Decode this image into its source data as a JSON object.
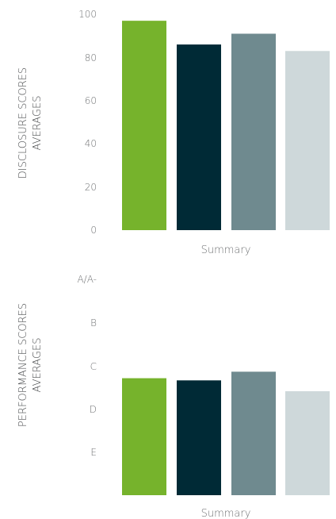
{
  "colors": [
    "#76b32c",
    "#002a36",
    "#6f8a8f",
    "#ced8da"
  ],
  "chart_data": [
    {
      "type": "bar",
      "categories": [
        "Summary"
      ],
      "series": [
        {
          "values": [
            97
          ]
        },
        {
          "values": [
            86
          ]
        },
        {
          "values": [
            91
          ]
        },
        {
          "values": [
            83
          ]
        }
      ],
      "ylabel_lines": [
        "DISCLOSURE SCORES",
        "AVERAGES"
      ],
      "xlabel": "Summary",
      "ylim": [
        0,
        100
      ],
      "yticks": [
        "0",
        "20",
        "40",
        "60",
        "80",
        "100"
      ],
      "grid": false,
      "legend": "none"
    },
    {
      "type": "bar",
      "categories": [
        "Summary"
      ],
      "series": [
        {
          "values": [
            2.7
          ]
        },
        {
          "values": [
            2.65
          ]
        },
        {
          "values": [
            2.85
          ]
        },
        {
          "values": [
            2.4
          ]
        }
      ],
      "ylabel_lines": [
        "PERFORMANCE SCORES",
        "AVERAGES"
      ],
      "xlabel": "Summary",
      "ylim": [
        0,
        5
      ],
      "yticks": [
        "E",
        "D",
        "C",
        "B",
        "A/A-"
      ],
      "grid": false,
      "legend": "none"
    }
  ]
}
